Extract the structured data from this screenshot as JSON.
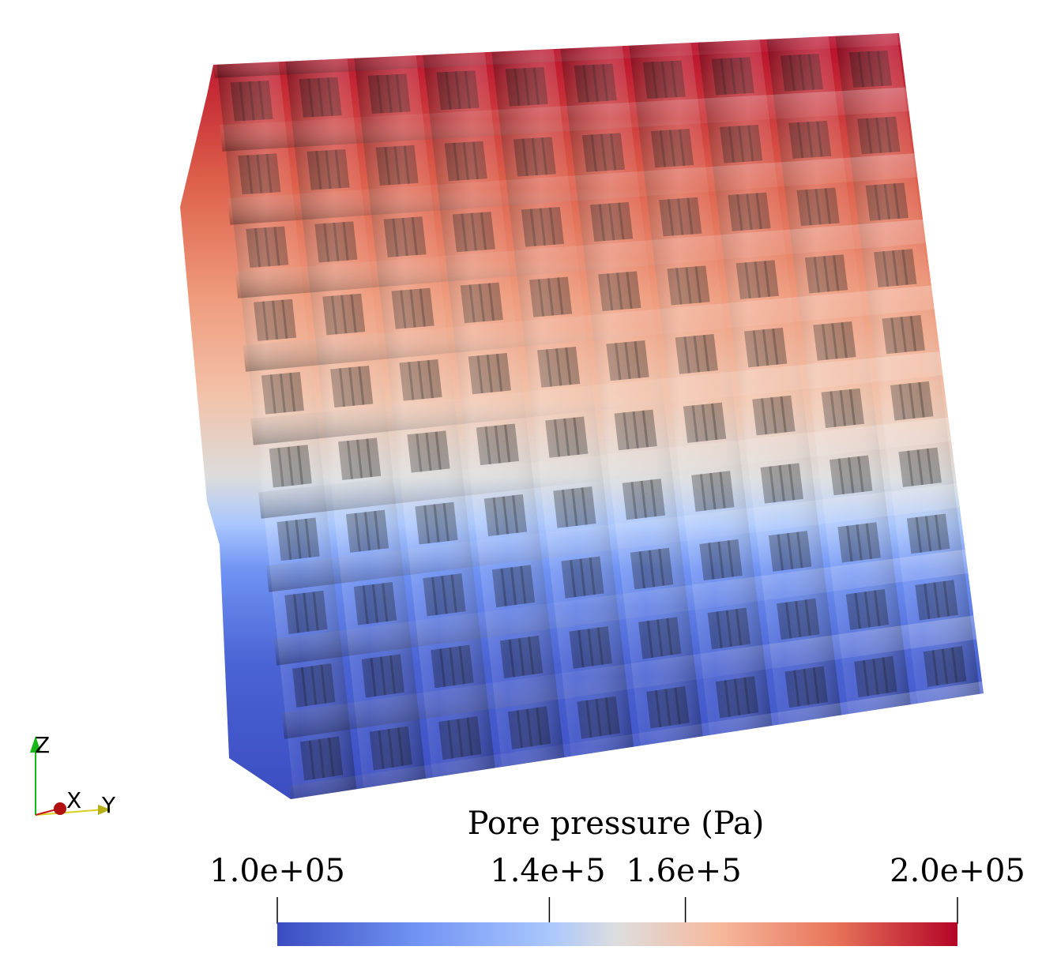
{
  "colormap": {
    "low": "#3b4cc0",
    "mid": "#dddddd",
    "high": "#b40426",
    "stops": [
      "#3b4cc0",
      "#6f92f3",
      "#aac7fd",
      "#dddddd",
      "#f7b89c",
      "#e7745b",
      "#b40426"
    ]
  },
  "orientation_axes": {
    "z_label": "Z",
    "x_label": "X",
    "y_label": "Y",
    "z_color": "#17b817",
    "x_color": "#c81414",
    "y_color": "#d6cf1f"
  },
  "colorbar": {
    "title": "Pore pressure (Pa)",
    "min": 100000,
    "max": 200000,
    "ticks": [
      {
        "value": 100000,
        "label": "1.0e+05"
      },
      {
        "value": 140000,
        "label": "1.4e+5"
      },
      {
        "value": 160000,
        "label": "1.6e+5"
      },
      {
        "value": 200000,
        "label": "2.0e+05"
      }
    ]
  },
  "lattice": {
    "columns": 10,
    "rows": 10
  }
}
